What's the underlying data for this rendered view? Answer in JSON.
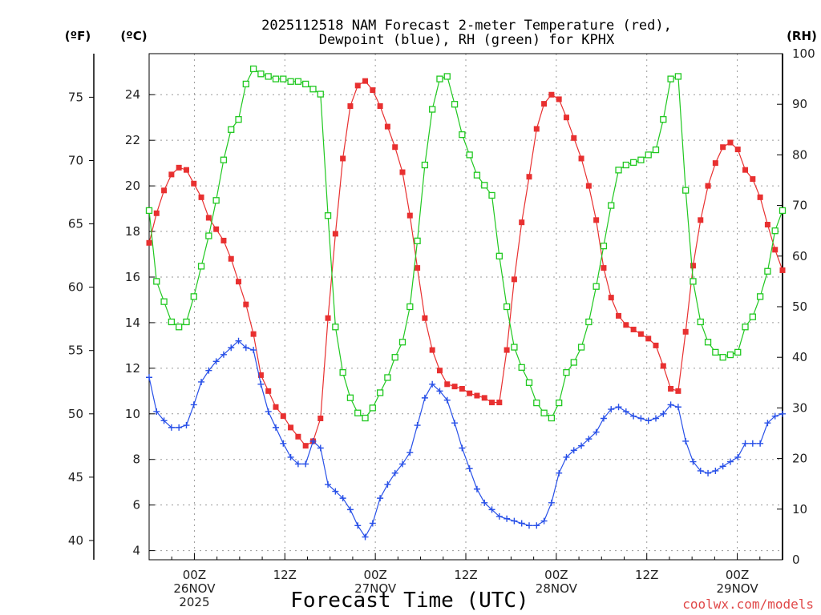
{
  "chart_data": {
    "type": "line",
    "title": "2025112518 NAM Forecast 2-meter Temperature (red),",
    "subtitle": "Dewpoint (blue), RH (green) for KPHX",
    "xlabel": "Forecast Time (UTC)",
    "y_left_outer_label": "(ºF)",
    "y_left_label": "(ºC)",
    "y_right_label": "(RH)",
    "credit": "coolwx.com/models",
    "x_hours_from_start": [
      0,
      84
    ],
    "ylim_c": [
      3.6,
      25.8
    ],
    "ylim_f": [
      38.48,
      78.44
    ],
    "ylim_rh": [
      0,
      100
    ],
    "ticks_c": [
      4,
      6,
      8,
      10,
      12,
      14,
      16,
      18,
      20,
      22,
      24
    ],
    "ticks_f": [
      40,
      45,
      50,
      55,
      60,
      65,
      70,
      75
    ],
    "ticks_rh": [
      0,
      10,
      20,
      30,
      40,
      50,
      60,
      70,
      80,
      90,
      100
    ],
    "x_tick_labels": [
      {
        "hour": 6,
        "lines": [
          "00Z",
          "26NOV",
          "2025"
        ]
      },
      {
        "hour": 18,
        "lines": [
          "12Z"
        ]
      },
      {
        "hour": 30,
        "lines": [
          "00Z",
          "27NOV"
        ]
      },
      {
        "hour": 42,
        "lines": [
          "12Z"
        ]
      },
      {
        "hour": 54,
        "lines": [
          "00Z",
          "28NOV"
        ]
      },
      {
        "hour": 66,
        "lines": [
          "12Z"
        ]
      },
      {
        "hour": 78,
        "lines": [
          "00Z",
          "29NOV"
        ]
      }
    ],
    "series": [
      {
        "name": "Temperature",
        "unit": "C",
        "color": "#e83030",
        "marker": "filled-square",
        "values": [
          17.5,
          18.8,
          19.8,
          20.5,
          20.8,
          20.7,
          20.1,
          19.5,
          18.6,
          18.1,
          17.6,
          16.8,
          15.8,
          14.8,
          13.5,
          11.7,
          11.0,
          10.3,
          9.9,
          9.4,
          9.0,
          8.6,
          8.8,
          9.8,
          14.2,
          17.9,
          21.2,
          23.5,
          24.4,
          24.6,
          24.2,
          23.5,
          22.6,
          21.7,
          20.6,
          18.7,
          16.4,
          14.2,
          12.8,
          11.9,
          11.3,
          11.2,
          11.1,
          10.9,
          10.8,
          10.7,
          10.5,
          10.5,
          12.8,
          15.9,
          18.4,
          20.4,
          22.5,
          23.6,
          24.0,
          23.8,
          23.0,
          22.1,
          21.2,
          20.0,
          18.5,
          16.4,
          15.1,
          14.3,
          13.9,
          13.7,
          13.5,
          13.3,
          13.0,
          12.1,
          11.1,
          11.0,
          13.6,
          16.5,
          18.5,
          20.0,
          21.0,
          21.7,
          21.9,
          21.6,
          20.7,
          20.3,
          19.5,
          18.3,
          17.2,
          16.3
        ]
      },
      {
        "name": "Dewpoint",
        "unit": "C",
        "color": "#2850e8",
        "marker": "plus",
        "values": [
          11.6,
          10.1,
          9.7,
          9.4,
          9.4,
          9.5,
          10.4,
          11.4,
          11.9,
          12.3,
          12.6,
          12.9,
          13.2,
          12.9,
          12.8,
          11.3,
          10.1,
          9.4,
          8.7,
          8.1,
          7.8,
          7.8,
          8.8,
          8.5,
          6.9,
          6.6,
          6.3,
          5.8,
          5.1,
          4.6,
          5.2,
          6.3,
          6.9,
          7.4,
          7.8,
          8.3,
          9.5,
          10.7,
          11.3,
          11.0,
          10.6,
          9.6,
          8.5,
          7.6,
          6.7,
          6.1,
          5.8,
          5.5,
          5.4,
          5.3,
          5.2,
          5.1,
          5.1,
          5.3,
          6.1,
          7.4,
          8.1,
          8.4,
          8.6,
          8.9,
          9.2,
          9.8,
          10.2,
          10.3,
          10.1,
          9.9,
          9.8,
          9.7,
          9.8,
          10.0,
          10.4,
          10.3,
          8.8,
          7.9,
          7.5,
          7.4,
          7.5,
          7.7,
          7.9,
          8.1,
          8.7,
          8.7,
          8.7,
          9.6,
          9.9,
          10.0
        ]
      },
      {
        "name": "RH",
        "unit": "%",
        "color": "#20c820",
        "marker": "open-square",
        "values": [
          69,
          55,
          51,
          47,
          46,
          47,
          52,
          58,
          64,
          71,
          79,
          85,
          87,
          94,
          97,
          96,
          95.5,
          95,
          95,
          94.5,
          94.5,
          94,
          93,
          92,
          68,
          46,
          37,
          32,
          29,
          28,
          30,
          33,
          36,
          40,
          43,
          50,
          63,
          78,
          89,
          95,
          95.5,
          90,
          84,
          80,
          76,
          74,
          72,
          60,
          50,
          42,
          38,
          35,
          31,
          29,
          28,
          31,
          37,
          39,
          42,
          47,
          54,
          62,
          70,
          77,
          78,
          78.5,
          79,
          80,
          81,
          87,
          95,
          95.5,
          73,
          55,
          47,
          43,
          41,
          40,
          40.5,
          41,
          46,
          48,
          52,
          57,
          65,
          69
        ]
      }
    ]
  }
}
